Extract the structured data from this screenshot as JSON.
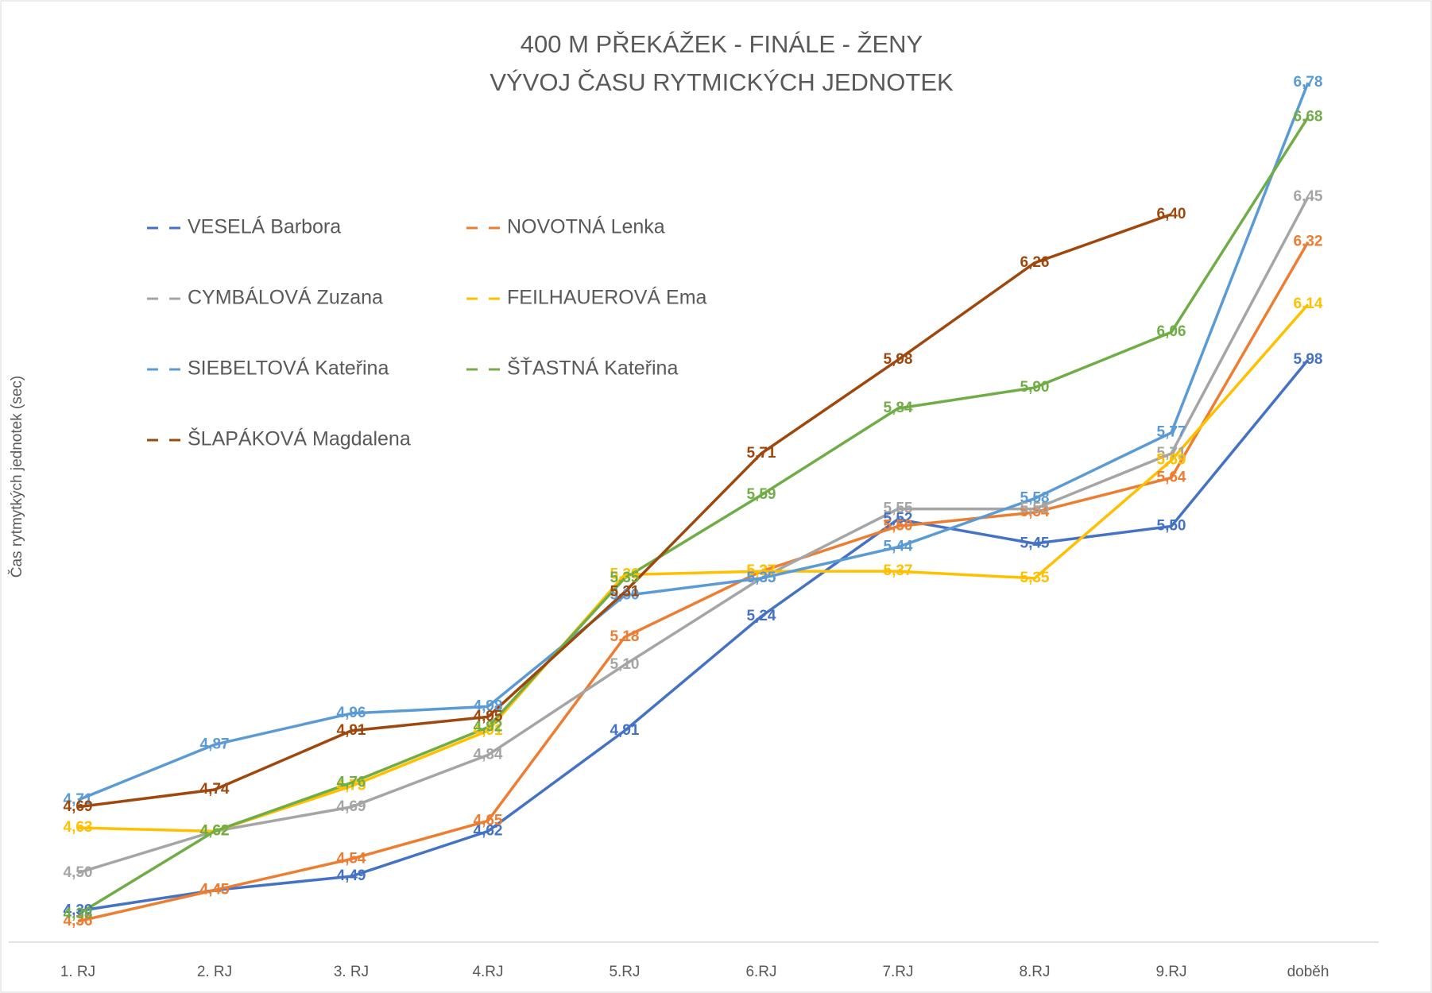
{
  "chart_data": {
    "type": "line",
    "title": "400 M PŘEKÁŽEK - FINÁLE - ŽENY",
    "subtitle": "VÝVOJ ČASU RYTMICKÝCH JEDNOTEK",
    "y_label": "Čas rytmytkých jednotek (sec)",
    "categories": [
      "1. RJ",
      "2. RJ",
      "3. RJ",
      "4.RJ",
      "5.RJ",
      "6.RJ",
      "7.RJ",
      "8.RJ",
      "9.RJ",
      "doběh"
    ],
    "ylim": [
      4.3,
      7.0
    ],
    "legend": "upper left",
    "series": [
      {
        "name": "VESELÁ Barbora",
        "color": "#4472c4",
        "values": [
          4.39,
          4.45,
          4.49,
          4.62,
          4.91,
          5.24,
          5.52,
          5.45,
          5.5,
          5.98
        ],
        "value_labels": [
          "4,39",
          "4,45",
          "4,49",
          "4,62",
          "4,91",
          "5,24",
          "5,52",
          "5,45",
          "5,50",
          "5,98"
        ]
      },
      {
        "name": "NOVOTNÁ Lenka",
        "color": "#ed7d31",
        "values": [
          4.36,
          4.45,
          4.54,
          4.65,
          5.18,
          5.37,
          5.5,
          5.54,
          5.64,
          6.32
        ],
        "value_labels": [
          "4,36",
          "4,45",
          "4,54",
          "4,65",
          "5,18",
          "5,37",
          "5,50",
          "5,54",
          "5,64",
          "6,32"
        ]
      },
      {
        "name": "CYMBÁLOVÁ Zuzana",
        "color": "#a5a5a5",
        "values": [
          4.5,
          4.62,
          4.69,
          4.84,
          5.1,
          5.35,
          5.55,
          5.55,
          5.71,
          6.45
        ],
        "value_labels": [
          "4,50",
          "4,62",
          "4,69",
          "4,84",
          "5,10",
          "5,35",
          "5,55",
          "5,55",
          "5,71",
          "6,45"
        ]
      },
      {
        "name": "FEILHAUEROVÁ Ema",
        "color": "#ffc000",
        "values": [
          4.63,
          4.62,
          4.75,
          4.91,
          5.36,
          5.37,
          5.37,
          5.35,
          5.69,
          6.14
        ],
        "value_labels": [
          "4,63",
          "4,62",
          "4,75",
          "4,91",
          "5,36",
          "5,37",
          "5,37",
          "5,35",
          "5,69",
          "6,14"
        ]
      },
      {
        "name": "SIEBELTOVÁ Kateřina",
        "color": "#5b9bd5",
        "values": [
          4.71,
          4.87,
          4.96,
          4.98,
          5.3,
          5.35,
          5.44,
          5.58,
          5.77,
          6.78
        ],
        "value_labels": [
          "4,71",
          "4,87",
          "4,96",
          "4,98",
          "5,30",
          "5,35",
          "5,44",
          "5,58",
          "5,77",
          "6,78"
        ]
      },
      {
        "name": "ŠŤASTNÁ Kateřina",
        "color": "#70ad47",
        "values": [
          4.38,
          4.62,
          4.76,
          4.92,
          5.35,
          5.59,
          5.84,
          5.9,
          6.06,
          6.68
        ],
        "value_labels": [
          "4,38",
          "4,62",
          "4,76",
          "4,92",
          "5,35",
          "5,59",
          "5,84",
          "5,90",
          "6,06",
          "6,68"
        ]
      },
      {
        "name": "ŠLAPÁKOVÁ Magdalena",
        "color": "#9e480e",
        "values": [
          4.69,
          4.74,
          4.91,
          4.95,
          5.31,
          5.71,
          5.98,
          6.26,
          6.4,
          null
        ],
        "value_labels": [
          "4,69",
          "4,74",
          "4,91",
          "4,95",
          "5,31",
          "5,71",
          "5,98",
          "6,26",
          "6,40",
          null
        ]
      }
    ]
  }
}
